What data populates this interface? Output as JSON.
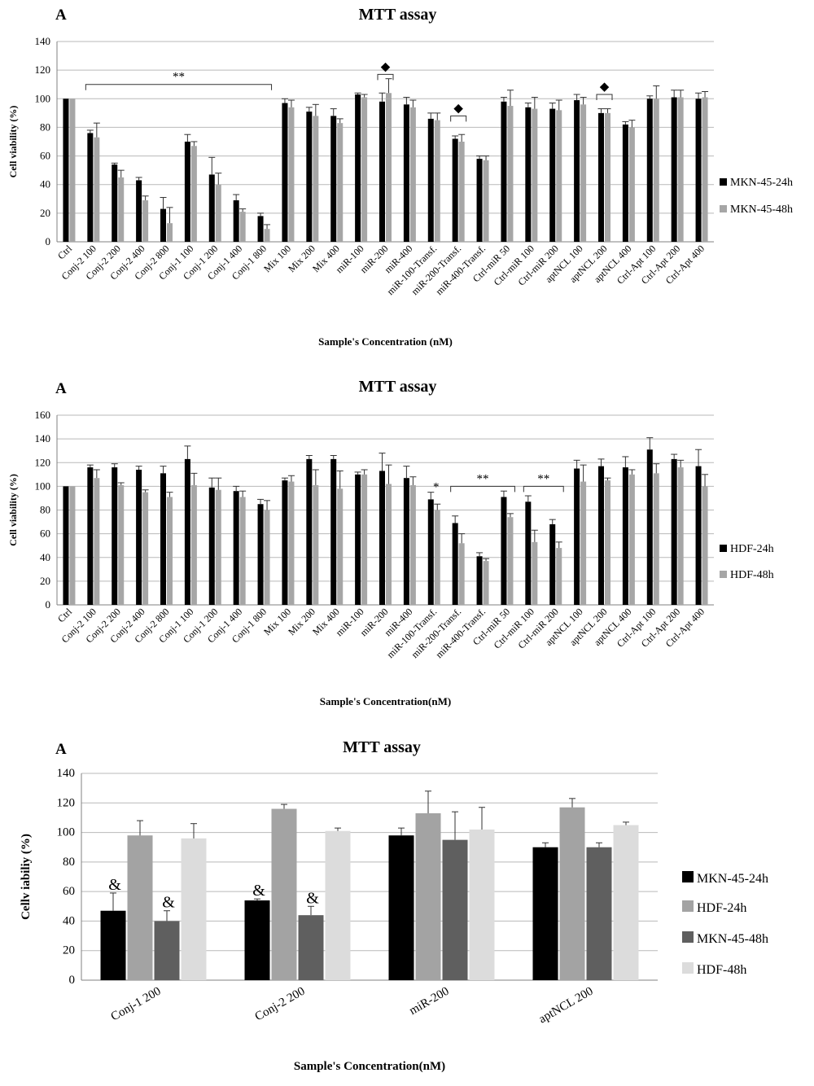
{
  "charts": [
    {
      "panel_label": "A",
      "title": "MTT assay",
      "ylabel": "Cell viability  (%)",
      "xlabel": "Sample's Concentration (nM)",
      "yticks": [
        "0",
        "20",
        "40",
        "60",
        "80",
        "100",
        "120",
        "140"
      ],
      "legend": [
        "MKN-45-24h",
        "MKN-45-48h"
      ],
      "annotations": [
        {
          "text": "**",
          "from": "Conj-2 100",
          "to": "Conj-1 800",
          "y": 110
        },
        {
          "text": "◆",
          "from": "miR-200",
          "to": "miR-200",
          "y": 117
        },
        {
          "text": "◆",
          "from": "miR-200-Transf.",
          "to": "miR-200-Transf.",
          "y": 88
        },
        {
          "text": "◆",
          "from": "aptNCL 200",
          "to": "aptNCL 200",
          "y": 103
        }
      ]
    },
    {
      "panel_label": "A",
      "title": "MTT assay",
      "ylabel": "Cell viability  (%)",
      "xlabel": "Sample's Concentration(nM)",
      "yticks": [
        "0",
        "20",
        "40",
        "60",
        "80",
        "100",
        "120",
        "140",
        "160"
      ],
      "legend": [
        "HDF-24h",
        "HDF-48h"
      ],
      "annotations": [
        {
          "text": "*",
          "from": "miR-100-Transf.",
          "to": "miR-100-Transf.",
          "y": null
        },
        {
          "text": "**",
          "from": "miR-200-Transf.",
          "to": "Ctrl-miR 50",
          "y": 100
        },
        {
          "text": "**",
          "from": "Ctrl-miR 100",
          "to": "Ctrl-miR 200",
          "y": 100
        }
      ]
    },
    {
      "panel_label": "A",
      "title": "MTT assay",
      "ylabel": "Cellv iabiliy (%)",
      "xlabel": "Sample's Concentration(nM)",
      "yticks": [
        "0",
        "20",
        "40",
        "60",
        "80",
        "100",
        "120",
        "140"
      ],
      "legend": [
        "MKN-45-24h",
        "HDF-24h",
        "MKN-45-48h",
        "HDF-48h"
      ],
      "annotations": [
        {
          "text": "&",
          "category": "Conj-1 200",
          "series": 0
        },
        {
          "text": "&",
          "category": "Conj-1 200",
          "series": 2
        },
        {
          "text": "&",
          "category": "Conj-2 200",
          "series": 0
        },
        {
          "text": "&",
          "category": "Conj-2 200",
          "series": 2
        }
      ]
    }
  ],
  "chart_data": [
    {
      "type": "bar",
      "title": "MTT assay",
      "xlabel": "Sample's Concentration (nM)",
      "ylabel": "Cell viability  (%)",
      "ylim": [
        0,
        140
      ],
      "grid": true,
      "legend_position": "right",
      "categories": [
        "Ctrl",
        "Conj-2 100",
        "Conj-2 200",
        "Conj-2 400",
        "Conj-2 800",
        "Conj-1 100",
        "Conj-1 200",
        "Conj-1 400",
        "Conj-1 800",
        "Mix 100",
        "Mix 200",
        "Mix 400",
        "miR-100",
        "miR-200",
        "miR-400",
        "miR-100-Transf.",
        "miR-200-Transf.",
        "miR-400-Transf.",
        "Ctrl-miR 50",
        "Ctrl-miR 100",
        "Ctrl-miR 200",
        "aptNCL 100",
        "aptNCL 200",
        "aptNCL 400",
        "Ctrl-Apt 100",
        "Ctrl-Apt 200",
        "Ctrl-Apt 400"
      ],
      "series": [
        {
          "name": "MKN-45-24h",
          "color": "#000000",
          "values": [
            100,
            76,
            54,
            43,
            23,
            70,
            47,
            29,
            18,
            97,
            91,
            88,
            103,
            98,
            96,
            86,
            72,
            58,
            98,
            94,
            93,
            99,
            90,
            82,
            100,
            101,
            100
          ],
          "errors": [
            0,
            2,
            1,
            2,
            8,
            5,
            12,
            4,
            2,
            3,
            3,
            5,
            1,
            6,
            5,
            4,
            2,
            2,
            3,
            3,
            4,
            4,
            3,
            2,
            2,
            5,
            4
          ]
        },
        {
          "name": "MKN-45-48h",
          "color": "#a6a6a6",
          "values": [
            100,
            73,
            45,
            29,
            13,
            67,
            40,
            21,
            9,
            94,
            88,
            83,
            101,
            104,
            94,
            85,
            70,
            57,
            95,
            93,
            92,
            96,
            90,
            80,
            100,
            101,
            101
          ],
          "errors": [
            0,
            10,
            5,
            3,
            11,
            3,
            8,
            2,
            3,
            5,
            8,
            3,
            2,
            10,
            5,
            5,
            5,
            3,
            11,
            8,
            7,
            5,
            3,
            5,
            9,
            5,
            4
          ]
        }
      ]
    },
    {
      "type": "bar",
      "title": "MTT assay",
      "xlabel": "Sample's Concentration(nM)",
      "ylabel": "Cell viability  (%)",
      "ylim": [
        0,
        160
      ],
      "grid": true,
      "legend_position": "right",
      "categories": [
        "Ctrl",
        "Conj-2 100",
        "Conj-2 200",
        "Conj-2 400",
        "Conj-2 800",
        "Conj-1 100",
        "Conj-1 200",
        "Conj-1 400",
        "Conj-1 800",
        "Mix 100",
        "Mix 200",
        "Mix 400",
        "miR-100",
        "miR-200",
        "miR-400",
        "miR-100-Transf.",
        "miR-200-Transf.",
        "miR-400-Transf.",
        "Ctrl-miR 50",
        "Ctrl-miR 100",
        "Ctrl-miR 200",
        "aptNCL 100",
        "aptNCL 200",
        "aptNCL 400",
        "Ctrl-Apt 100",
        "Ctrl-Apt 200",
        "Ctrl-Apt 400"
      ],
      "series": [
        {
          "name": "HDF-24h",
          "color": "#000000",
          "values": [
            100,
            116,
            116,
            114,
            111,
            123,
            99,
            96,
            85,
            105,
            123,
            123,
            110,
            113,
            107,
            89,
            69,
            41,
            91,
            87,
            68,
            115,
            117,
            116,
            131,
            123,
            117
          ],
          "errors": [
            0,
            2,
            3,
            3,
            6,
            11,
            8,
            4,
            4,
            2,
            3,
            3,
            2,
            15,
            10,
            6,
            6,
            3,
            5,
            5,
            4,
            7,
            6,
            9,
            10,
            4,
            14
          ]
        },
        {
          "name": "HDF-48h",
          "color": "#a6a6a6",
          "values": [
            100,
            107,
            101,
            95,
            91,
            101,
            97,
            91,
            80,
            104,
            101,
            98,
            110,
            102,
            101,
            80,
            52,
            37,
            74,
            53,
            48,
            104,
            105,
            110,
            111,
            116,
            100
          ],
          "errors": [
            0,
            7,
            2,
            2,
            4,
            10,
            10,
            5,
            8,
            5,
            13,
            15,
            4,
            16,
            7,
            5,
            8,
            2,
            3,
            10,
            5,
            14,
            2,
            4,
            8,
            6,
            10
          ]
        }
      ]
    },
    {
      "type": "bar",
      "title": "MTT assay",
      "xlabel": "Sample's Concentration(nM)",
      "ylabel": "Cellv iabiliy (%)",
      "ylim": [
        0,
        140
      ],
      "grid": true,
      "legend_position": "right",
      "categories": [
        "Conj-1 200",
        "Conj-2 200",
        "miR-200",
        "aptNCL 200"
      ],
      "series": [
        {
          "name": "MKN-45-24h",
          "color": "#000000",
          "values": [
            47,
            54,
            98,
            90
          ],
          "errors": [
            12,
            1,
            5,
            3
          ]
        },
        {
          "name": "HDF-24h",
          "color": "#a3a3a3",
          "values": [
            98,
            116,
            113,
            117
          ],
          "errors": [
            10,
            3,
            15,
            6
          ]
        },
        {
          "name": "MKN-45-48h",
          "color": "#5f5f5f",
          "values": [
            40,
            44,
            95,
            90
          ],
          "errors": [
            7,
            6,
            19,
            3
          ]
        },
        {
          "name": "HDF-48h",
          "color": "#dcdcdc",
          "values": [
            96,
            101,
            102,
            105
          ],
          "errors": [
            10,
            2,
            15,
            2
          ]
        }
      ]
    }
  ]
}
